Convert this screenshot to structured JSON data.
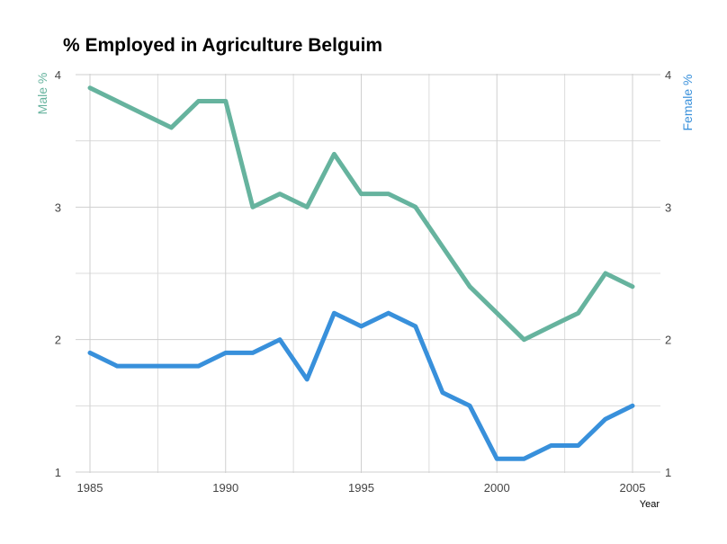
{
  "chart_data": {
    "type": "line",
    "title": "% Employed in Agriculture Belguim",
    "xlabel": "Year",
    "ylabel_left": "Male %",
    "ylabel_right": "Female %",
    "xlim": [
      1985,
      2005
    ],
    "ylim": [
      1,
      4
    ],
    "x_ticks": [
      1985,
      1990,
      1995,
      2000,
      2005
    ],
    "y_ticks": [
      1,
      2,
      3,
      4
    ],
    "grid": true,
    "x": [
      1985,
      1986,
      1987,
      1988,
      1989,
      1990,
      1991,
      1992,
      1993,
      1994,
      1995,
      1996,
      1997,
      1998,
      1999,
      2000,
      2001,
      2002,
      2003,
      2004,
      2005
    ],
    "series": [
      {
        "name": "Male %",
        "color": "#66b39e",
        "values": [
          3.9,
          3.8,
          3.7,
          3.6,
          3.8,
          3.8,
          3.0,
          3.1,
          3.0,
          3.4,
          3.1,
          3.1,
          3.0,
          2.7,
          2.4,
          2.2,
          2.0,
          2.1,
          2.2,
          2.5,
          2.4
        ]
      },
      {
        "name": "Female %",
        "color": "#3890db",
        "values": [
          1.9,
          1.8,
          1.8,
          1.8,
          1.8,
          1.9,
          1.9,
          2.0,
          1.7,
          2.2,
          2.1,
          2.2,
          2.1,
          1.6,
          1.5,
          1.1,
          1.1,
          1.2,
          1.2,
          1.4,
          1.5
        ]
      }
    ]
  }
}
